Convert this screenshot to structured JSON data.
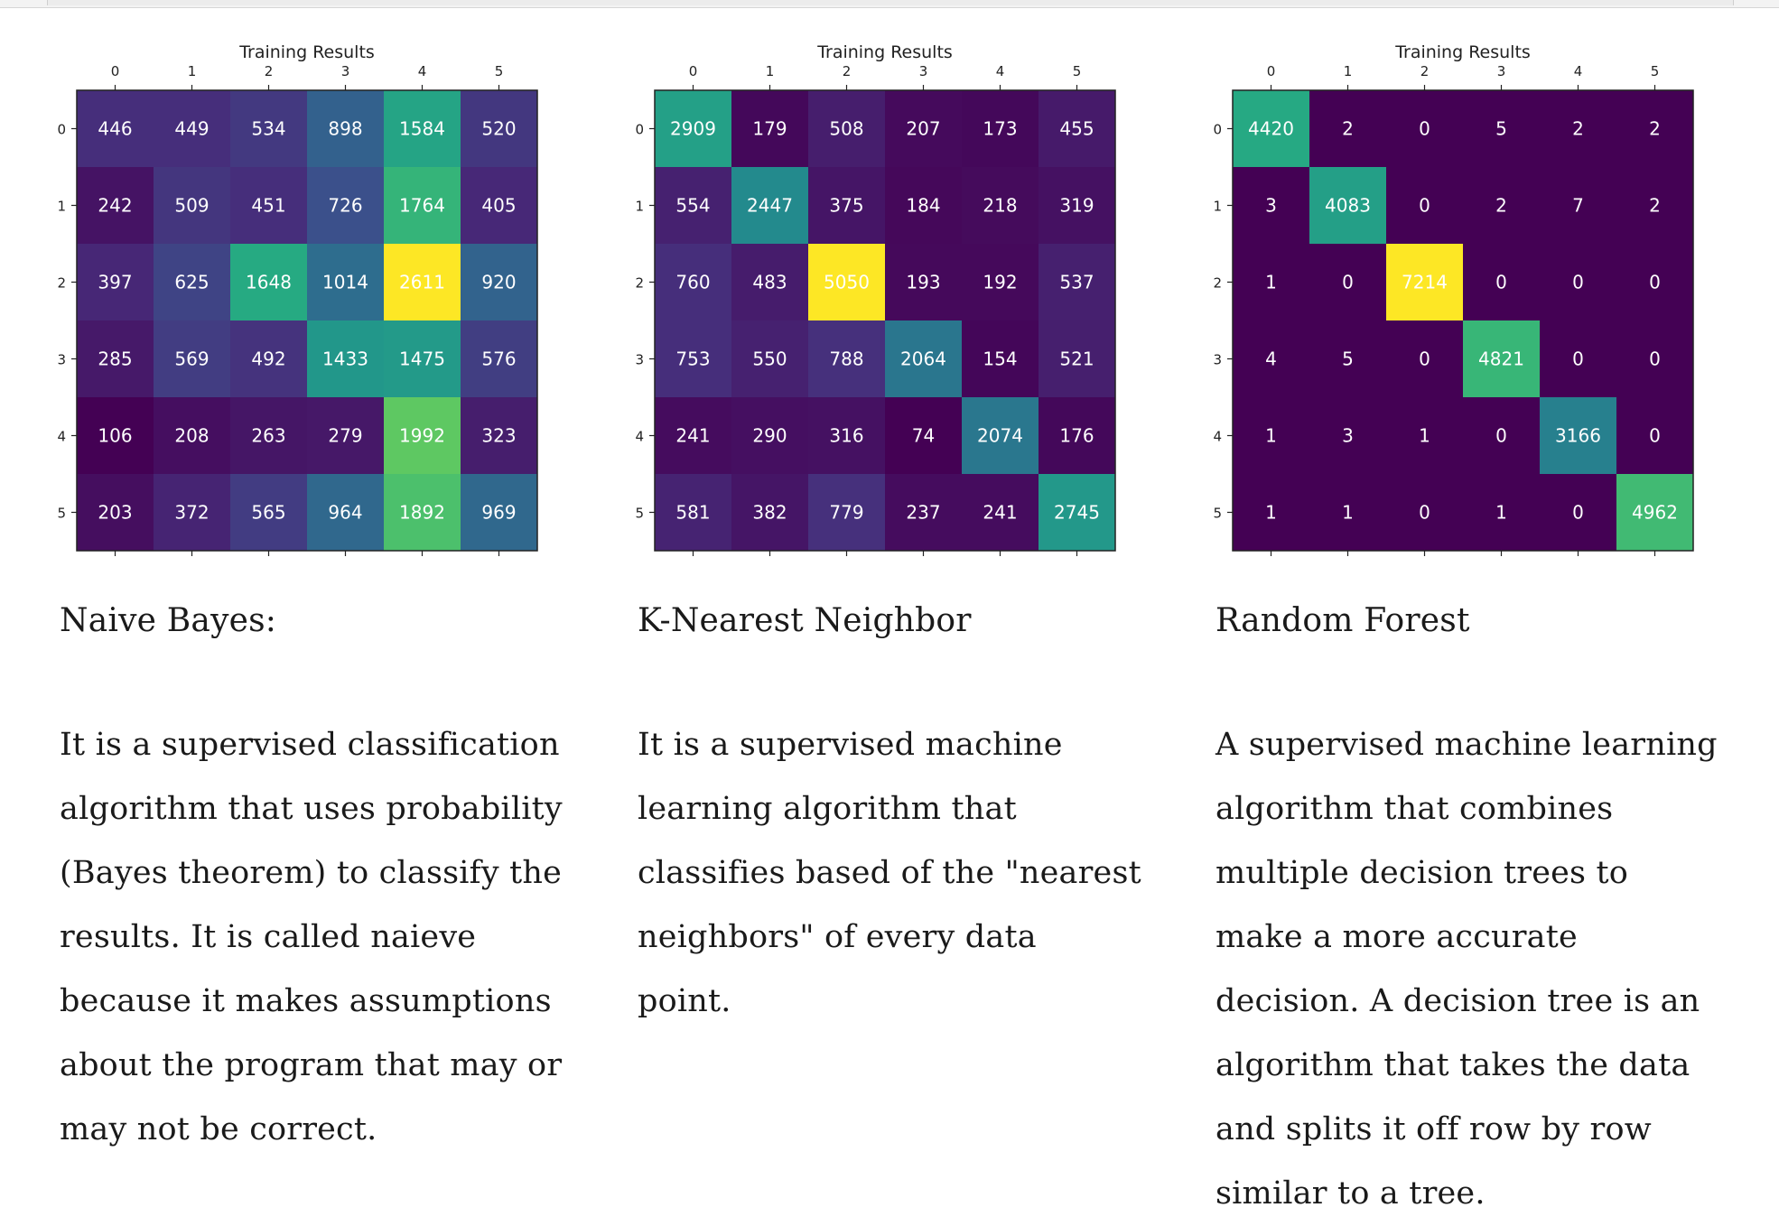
{
  "panels": [
    {
      "id": "naive-bayes",
      "caption": "Naive Bayes:",
      "description": "It is a supervised classification\nalgorithm that uses probability\n(Bayes theorem) to classify the\nresults.  It is called naieve\nbecause it makes assumptions\nabout the program that may or\nmay not be correct.",
      "chart_data": {
        "type": "heatmap",
        "title": "Training Results",
        "x_categories": [
          "0",
          "1",
          "2",
          "3",
          "4",
          "5"
        ],
        "y_categories": [
          "0",
          "1",
          "2",
          "3",
          "4",
          "5"
        ],
        "colormap": "viridis",
        "values": [
          [
            446,
            449,
            534,
            898,
            1584,
            520
          ],
          [
            242,
            509,
            451,
            726,
            1764,
            405
          ],
          [
            397,
            625,
            1648,
            1014,
            2611,
            920
          ],
          [
            285,
            569,
            492,
            1433,
            1475,
            576
          ],
          [
            106,
            208,
            263,
            279,
            1992,
            323
          ],
          [
            203,
            372,
            565,
            964,
            1892,
            969
          ]
        ]
      }
    },
    {
      "id": "knn",
      "caption": "K-Nearest Neighbor",
      "description": "It is a supervised machine\nlearning algorithm that\nclassifies based of the \"nearest\nneighbors\" of every data\npoint.",
      "chart_data": {
        "type": "heatmap",
        "title": "Training Results",
        "x_categories": [
          "0",
          "1",
          "2",
          "3",
          "4",
          "5"
        ],
        "y_categories": [
          "0",
          "1",
          "2",
          "3",
          "4",
          "5"
        ],
        "colormap": "viridis",
        "values": [
          [
            2909,
            179,
            508,
            207,
            173,
            455
          ],
          [
            554,
            2447,
            375,
            184,
            218,
            319
          ],
          [
            760,
            483,
            5050,
            193,
            192,
            537
          ],
          [
            753,
            550,
            788,
            2064,
            154,
            521
          ],
          [
            241,
            290,
            316,
            74,
            2074,
            176
          ],
          [
            581,
            382,
            779,
            237,
            241,
            2745
          ]
        ]
      }
    },
    {
      "id": "random-forest",
      "caption": "Random Forest",
      "description": "A supervised machine learning\nalgorithm that combines\nmultiple decision trees to\nmake a more accurate\ndecision. A decision tree is an\nalgorithm that takes the data\nand splits it off row by row\nsimilar to a tree.",
      "chart_data": {
        "type": "heatmap",
        "title": "Training Results",
        "x_categories": [
          "0",
          "1",
          "2",
          "3",
          "4",
          "5"
        ],
        "y_categories": [
          "0",
          "1",
          "2",
          "3",
          "4",
          "5"
        ],
        "colormap": "viridis",
        "values": [
          [
            4420,
            2,
            0,
            5,
            2,
            2
          ],
          [
            3,
            4083,
            0,
            2,
            7,
            2
          ],
          [
            1,
            0,
            7214,
            0,
            0,
            0
          ],
          [
            4,
            5,
            0,
            4821,
            0,
            0
          ],
          [
            1,
            3,
            1,
            0,
            3166,
            0
          ],
          [
            1,
            1,
            0,
            1,
            0,
            4962
          ]
        ]
      }
    }
  ]
}
